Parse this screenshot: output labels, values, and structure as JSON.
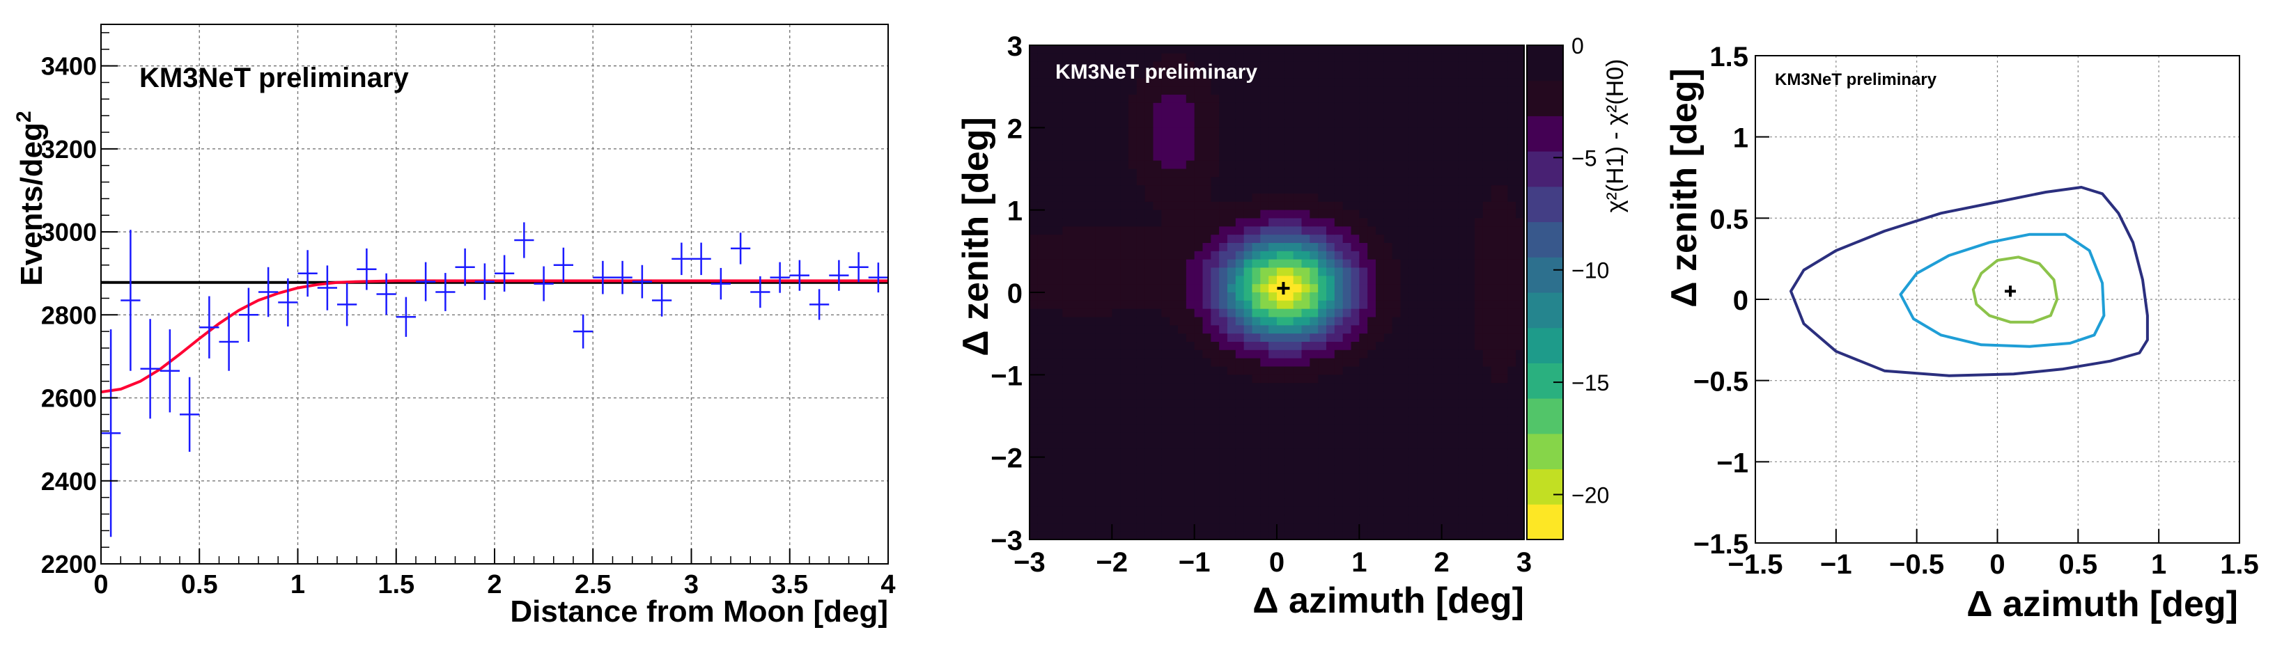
{
  "chart_data": [
    {
      "type": "scatter",
      "title": "",
      "annotation": "KM3NeT preliminary",
      "xlabel": "Distance from Moon [deg]",
      "ylabel": "Events/deg",
      "ylabel_sup": "2",
      "xlim": [
        0,
        4
      ],
      "ylim": [
        2200,
        3500
      ],
      "grid": true,
      "xticks": [
        0,
        0.5,
        1,
        1.5,
        2,
        2.5,
        3,
        3.5,
        4
      ],
      "xtick_labels": [
        "0",
        "0.5",
        "1",
        "1.5",
        "2",
        "2.5",
        "3",
        "3.5",
        "4"
      ],
      "yticks": [
        2200,
        2400,
        2600,
        2800,
        3000,
        3200,
        3400
      ],
      "ytick_labels": [
        "2200",
        "2400",
        "2600",
        "2800",
        "3000",
        "3200",
        "3400"
      ],
      "colors": {
        "points": "#1a1aff",
        "fit": "#ff0033",
        "baseline": "#000000"
      },
      "points": {
        "x": [
          0.05,
          0.15,
          0.25,
          0.35,
          0.45,
          0.55,
          0.65,
          0.75,
          0.85,
          0.95,
          1.05,
          1.15,
          1.25,
          1.35,
          1.45,
          1.55,
          1.65,
          1.75,
          1.85,
          1.95,
          2.05,
          2.15,
          2.25,
          2.35,
          2.45,
          2.55,
          2.65,
          2.75,
          2.85,
          2.95,
          3.05,
          3.15,
          3.25,
          3.35,
          3.45,
          3.55,
          3.65,
          3.75,
          3.85,
          3.95
        ],
        "y": [
          2515,
          2835,
          2670,
          2665,
          2560,
          2770,
          2735,
          2800,
          2855,
          2830,
          2900,
          2865,
          2825,
          2910,
          2850,
          2795,
          2880,
          2855,
          2915,
          2880,
          2900,
          2980,
          2875,
          2920,
          2760,
          2890,
          2890,
          2880,
          2835,
          2935,
          2935,
          2875,
          2960,
          2855,
          2890,
          2895,
          2825,
          2895,
          2915,
          2890
        ],
        "yerr": [
          250,
          170,
          120,
          100,
          90,
          75,
          70,
          65,
          60,
          58,
          56,
          54,
          52,
          50,
          50,
          48,
          47,
          46,
          45,
          44,
          44,
          43,
          42,
          42,
          41,
          40,
          40,
          40,
          39,
          39,
          39,
          38,
          38,
          38,
          37,
          37,
          37,
          37,
          36,
          36
        ]
      },
      "fit_curve": {
        "x": [
          0.0,
          0.1,
          0.2,
          0.3,
          0.4,
          0.5,
          0.6,
          0.7,
          0.8,
          0.9,
          1.0,
          1.1,
          1.2,
          1.3,
          1.4,
          1.5,
          2.0,
          2.5,
          3.0,
          3.5,
          4.0
        ],
        "y": [
          2614,
          2621,
          2640,
          2669,
          2705,
          2743,
          2779,
          2811,
          2835,
          2852,
          2865,
          2873,
          2878,
          2880,
          2881,
          2882,
          2882,
          2882,
          2882,
          2882,
          2882
        ]
      },
      "baseline": 2878
    },
    {
      "type": "heatmap",
      "title": "",
      "annotation": "KM3NeT preliminary",
      "xlabel": "Δ azimuth [deg]",
      "ylabel": "Δ zenith [deg]",
      "xlim": [
        -3,
        3
      ],
      "ylim": [
        -3,
        3
      ],
      "xticks": [
        -3,
        -2,
        -1,
        0,
        1,
        2,
        3
      ],
      "xtick_labels": [
        "−3",
        "−2",
        "−1",
        "0",
        "1",
        "2",
        "3"
      ],
      "yticks": [
        -3,
        -2,
        -1,
        0,
        1,
        2,
        3
      ],
      "ytick_labels": [
        "−3",
        "−2",
        "−1",
        "0",
        "1",
        "2",
        "3"
      ],
      "colorbar": {
        "label": "χ²(H1) - χ²(H0)",
        "range": [
          -22,
          0
        ],
        "ticks": [
          0,
          -5,
          -10,
          -15,
          -20
        ],
        "tick_labels": [
          "0",
          "−5",
          "−10",
          "−15",
          "−20"
        ],
        "palette": [
          "#fde725",
          "#c2df23",
          "#86d549",
          "#52c569",
          "#2ab07f",
          "#1e9b8a",
          "#25858e",
          "#2d708e",
          "#38588c",
          "#433e85",
          "#482173",
          "#440154",
          "#24091f",
          "#1b0a22"
        ]
      },
      "blobs": [
        {
          "x": 0.1,
          "y": 0.05,
          "depth": 22,
          "sx": 0.55,
          "sy": 0.45
        },
        {
          "x": -1.25,
          "y": 1.95,
          "depth": 3.5,
          "sx": 0.35,
          "sy": 0.55
        },
        {
          "x": -2.3,
          "y": 0.25,
          "depth": 2.5,
          "sx": 0.8,
          "sy": 0.35
        },
        {
          "x": 2.7,
          "y": 0.1,
          "depth": 2.0,
          "sx": 0.25,
          "sy": 0.9
        }
      ],
      "best_fit": {
        "x": 0.08,
        "y": 0.05
      }
    },
    {
      "type": "scatter",
      "title": "",
      "annotation": "KM3NeT preliminary",
      "xlabel": "Δ azimuth [deg]",
      "ylabel": "Δ zenith [deg]",
      "xlim": [
        -1.5,
        1.5
      ],
      "ylim": [
        -1.5,
        1.5
      ],
      "grid": true,
      "xticks": [
        -1.5,
        -1,
        -0.5,
        0,
        0.5,
        1,
        1.5
      ],
      "xtick_labels": [
        "−1.5",
        "−1",
        "−0.5",
        "0",
        "0.5",
        "1",
        "1.5"
      ],
      "yticks": [
        -1.5,
        -1,
        -0.5,
        0,
        0.5,
        1,
        1.5
      ],
      "ytick_labels": [
        "−1.5",
        "−1",
        "−0.5",
        "0",
        "0.5",
        "1",
        "1.5"
      ],
      "contours": [
        {
          "color": "#2b2f7e",
          "points": [
            [
              -1.28,
              0.05
            ],
            [
              -1.2,
              0.18
            ],
            [
              -1.0,
              0.3
            ],
            [
              -0.7,
              0.42
            ],
            [
              -0.35,
              0.53
            ],
            [
              0.0,
              0.6
            ],
            [
              0.3,
              0.66
            ],
            [
              0.52,
              0.69
            ],
            [
              0.65,
              0.65
            ],
            [
              0.75,
              0.53
            ],
            [
              0.84,
              0.35
            ],
            [
              0.9,
              0.12
            ],
            [
              0.93,
              -0.1
            ],
            [
              0.93,
              -0.25
            ],
            [
              0.88,
              -0.33
            ],
            [
              0.7,
              -0.38
            ],
            [
              0.4,
              -0.43
            ],
            [
              0.1,
              -0.46
            ],
            [
              -0.3,
              -0.47
            ],
            [
              -0.7,
              -0.44
            ],
            [
              -1.0,
              -0.32
            ],
            [
              -1.2,
              -0.15
            ],
            [
              -1.28,
              0.05
            ]
          ]
        },
        {
          "color": "#1f9ed6",
          "points": [
            [
              -0.6,
              0.03
            ],
            [
              -0.5,
              0.16
            ],
            [
              -0.3,
              0.27
            ],
            [
              -0.05,
              0.35
            ],
            [
              0.2,
              0.4
            ],
            [
              0.42,
              0.4
            ],
            [
              0.57,
              0.3
            ],
            [
              0.65,
              0.1
            ],
            [
              0.66,
              -0.1
            ],
            [
              0.6,
              -0.22
            ],
            [
              0.45,
              -0.27
            ],
            [
              0.2,
              -0.29
            ],
            [
              -0.1,
              -0.28
            ],
            [
              -0.35,
              -0.22
            ],
            [
              -0.52,
              -0.12
            ],
            [
              -0.6,
              0.03
            ]
          ]
        },
        {
          "color": "#8cc34a",
          "points": [
            [
              -0.15,
              0.06
            ],
            [
              -0.1,
              0.16
            ],
            [
              0.0,
              0.24
            ],
            [
              0.13,
              0.26
            ],
            [
              0.26,
              0.22
            ],
            [
              0.35,
              0.12
            ],
            [
              0.37,
              0.0
            ],
            [
              0.33,
              -0.1
            ],
            [
              0.22,
              -0.14
            ],
            [
              0.08,
              -0.14
            ],
            [
              -0.05,
              -0.1
            ],
            [
              -0.13,
              -0.03
            ],
            [
              -0.15,
              0.06
            ]
          ]
        }
      ],
      "best_fit": {
        "x": 0.08,
        "y": 0.05
      }
    }
  ]
}
